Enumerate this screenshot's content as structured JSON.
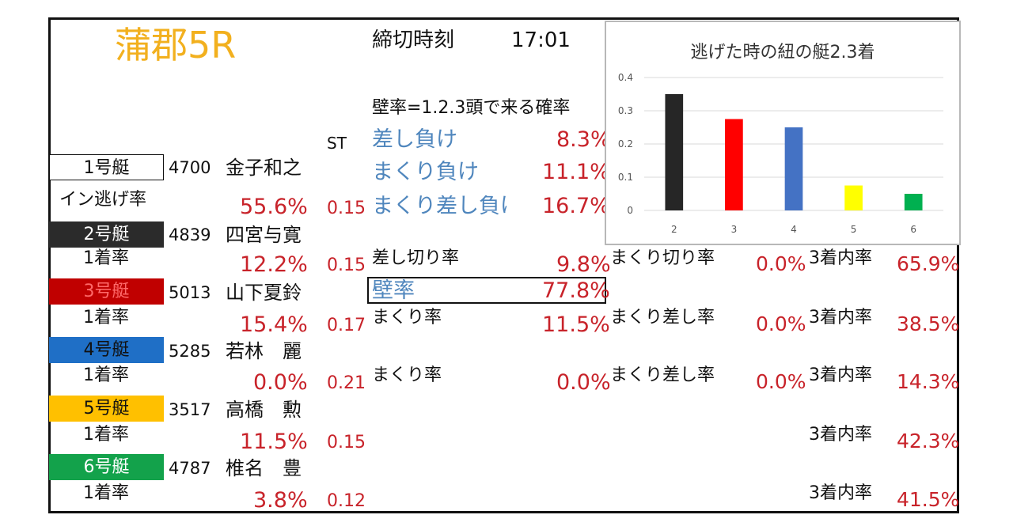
{
  "race": {
    "venue": "蒲郡5R",
    "deadline_label": "締切時刻",
    "deadline_time": "17:01",
    "st_header": "ST"
  },
  "colors": {
    "venue": "#f2b01e",
    "boat1": "#ffffff",
    "boat2": "#2b2b2b",
    "boat3": "#c00000",
    "boat4": "#1f6fc6",
    "boat5": "#ffc000",
    "boat6": "#13a24b",
    "percent_red": "#c8232a",
    "label_blue": "#4f86bd"
  },
  "boats": [
    {
      "label": "1号艇",
      "reg": "4700",
      "name": "金子和之",
      "rate_label": "イン逃げ率",
      "rate": "55.6%",
      "st": "0.15"
    },
    {
      "label": "2号艇",
      "reg": "4839",
      "name": "四宮与寛",
      "rate_label": "1着率",
      "rate": "12.2%",
      "st": "0.15"
    },
    {
      "label": "3号艇",
      "reg": "5013",
      "name": "山下夏鈴",
      "rate_label": "1着率",
      "rate": "15.4%",
      "st": "0.17"
    },
    {
      "label": "4号艇",
      "reg": "5285",
      "name": "若林　麗",
      "rate_label": "1着率",
      "rate": "0.0%",
      "st": "0.21"
    },
    {
      "label": "5号艇",
      "reg": "3517",
      "name": "高橋　勲",
      "rate_label": "1着率",
      "rate": "11.5%",
      "st": "0.15"
    },
    {
      "label": "6号艇",
      "reg": "4787",
      "name": "椎名　豊",
      "rate_label": "1着率",
      "rate": "3.8%",
      "st": "0.12"
    }
  ],
  "wall": {
    "heading": "壁率=1.2.3頭で来る確率",
    "rows": [
      {
        "label": "差し負け",
        "value": "8.3%"
      },
      {
        "label": "まくり負け",
        "value": "11.1%"
      },
      {
        "label": "まくり差し負け",
        "value": "16.7%"
      }
    ],
    "wall_label": "壁率",
    "wall_value": "77.8%"
  },
  "boat2_stats": {
    "a_label": "差し切り率",
    "a_value": "9.8%",
    "b_label": "まくり切り率",
    "b_value": "0.0%",
    "c_label": "3着内率",
    "c_value": "65.9%"
  },
  "boat3_stats": {
    "a_label": "まくり率",
    "a_value": "11.5%",
    "b_label": "まくり差し率",
    "b_value": "0.0%",
    "c_label": "3着内率",
    "c_value": "38.5%"
  },
  "boat4_stats": {
    "a_label": "まくり率",
    "a_value": "0.0%",
    "b_label": "まくり差し率",
    "b_value": "0.0%",
    "c_label": "3着内率",
    "c_value": "14.3%"
  },
  "boat5_stats": {
    "c_label": "3着内率",
    "c_value": "42.3%"
  },
  "boat6_stats": {
    "c_label": "3着内率",
    "c_value": "41.5%"
  },
  "chart_data": {
    "type": "bar",
    "title": "逃げた時の紐の艇2.3着",
    "categories": [
      "2",
      "3",
      "4",
      "5",
      "6"
    ],
    "values": [
      0.35,
      0.275,
      0.25,
      0.075,
      0.05
    ],
    "bar_colors": [
      "#262626",
      "#ff0000",
      "#4472c4",
      "#ffff00",
      "#00b050"
    ],
    "yticks": [
      "0",
      "0.1",
      "0.2",
      "0.3",
      "0.4"
    ],
    "ylim": [
      0,
      0.4
    ],
    "grid": true,
    "legend": "none",
    "xlabel": "",
    "ylabel": ""
  }
}
